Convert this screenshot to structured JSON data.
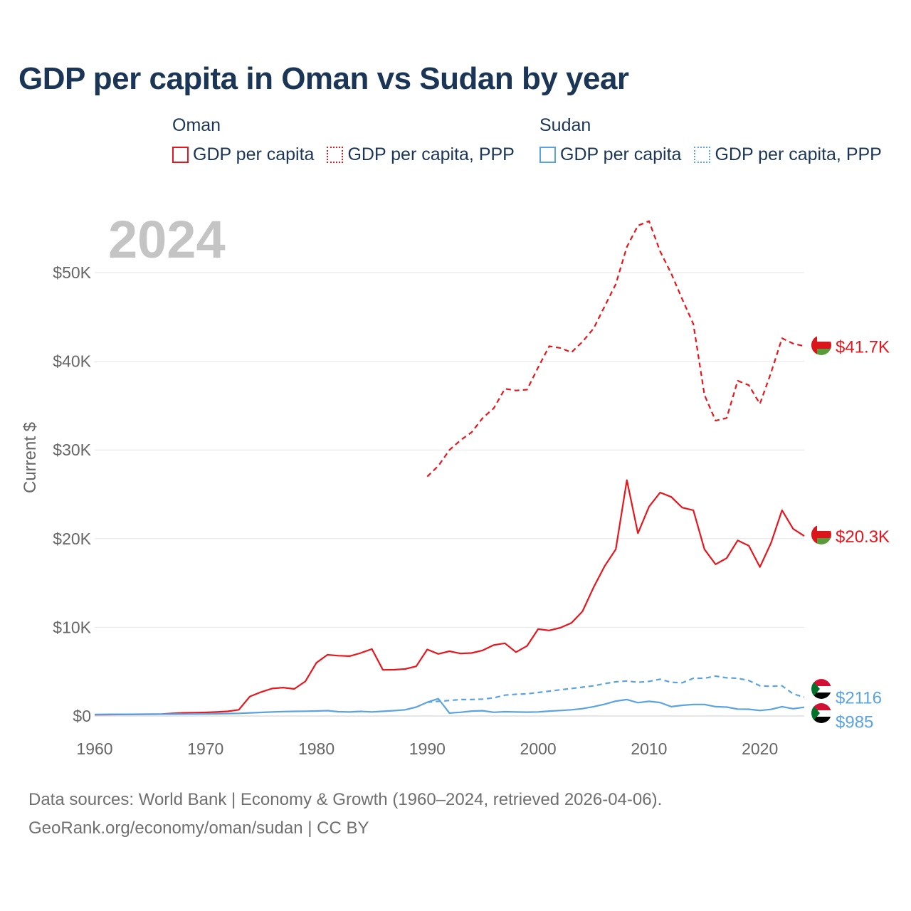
{
  "title": "GDP per capita in Oman vs Sudan by year",
  "legend": {
    "groups": [
      {
        "name": "Oman",
        "color": "#e8161c",
        "items": [
          "GDP per capita",
          "GDP per capita, PPP"
        ]
      },
      {
        "name": "Sudan",
        "color": "#5aa3e3",
        "items": [
          "GDP per capita",
          "GDP per capita, PPP"
        ]
      }
    ]
  },
  "year_watermark": "2024",
  "footer": {
    "line1": "Data sources: World Bank | Economy & Growth (1960–2024, retrieved 2026-04-06).",
    "line2": "GeoRank.org/economy/oman/sudan | CC BY"
  },
  "colors": {
    "oman": "#e8161c",
    "sudan": "#5aa3e3",
    "grid": "#e6e6e6",
    "axis_text": "#666666",
    "watermark": "#c4c4c4"
  },
  "chart_data": {
    "type": "line",
    "title": "GDP per capita in Oman vs Sudan by year",
    "xlabel": "",
    "ylabel": "Current $",
    "xlim": [
      1960,
      2024
    ],
    "ylim": [
      0,
      55000
    ],
    "x_ticks": [
      1960,
      1970,
      1980,
      1990,
      2000,
      2010,
      2020
    ],
    "y_ticks": [
      0,
      10000,
      20000,
      30000,
      40000,
      50000
    ],
    "y_tick_labels": [
      "$0",
      "$10K",
      "$20K",
      "$30K",
      "$40K",
      "$50K"
    ],
    "grid": true,
    "series": [
      {
        "name": "Oman GDP per capita",
        "country": "Oman",
        "style": "solid",
        "color": "#e8161c",
        "end_label": "$20.3K",
        "start_year": 1960,
        "values": [
          150,
          160,
          170,
          180,
          190,
          200,
          210,
          300,
          350,
          380,
          400,
          450,
          520,
          700,
          2200,
          2700,
          3100,
          3200,
          3050,
          3900,
          6000,
          6900,
          6800,
          6750,
          7100,
          7550,
          5200,
          5220,
          5300,
          5600,
          7500,
          7000,
          7300,
          7050,
          7100,
          7400,
          8000,
          8200,
          7200,
          7900,
          9800,
          9650,
          9950,
          10500,
          11800,
          14500,
          16900,
          18800,
          26600,
          20600,
          23600,
          25200,
          24700,
          23500,
          23200,
          18800,
          17100,
          17800,
          19800,
          19200,
          16800,
          19500,
          23200,
          21100,
          20300
        ]
      },
      {
        "name": "Oman GDP per capita, PPP",
        "country": "Oman",
        "style": "dashed",
        "color": "#e8161c",
        "end_label": "$41.7K",
        "start_year": 1990,
        "values": [
          27000,
          28200,
          30000,
          31100,
          32000,
          33600,
          34700,
          36900,
          36700,
          36800,
          39300,
          41700,
          41500,
          41000,
          42200,
          43700,
          46200,
          48700,
          52900,
          55300,
          55800,
          52400,
          49900,
          47000,
          44200,
          36200,
          33300,
          33600,
          37800,
          37300,
          35200,
          38700,
          42600,
          42000,
          41700
        ]
      },
      {
        "name": "Sudan GDP per capita",
        "country": "Sudan",
        "style": "solid",
        "color": "#5aa3e3",
        "end_label": "$985",
        "start_year": 1960,
        "values": [
          180,
          185,
          190,
          195,
          200,
          200,
          205,
          210,
          220,
          230,
          240,
          250,
          270,
          300,
          350,
          400,
          450,
          500,
          520,
          540,
          560,
          600,
          480,
          450,
          520,
          460,
          530,
          600,
          700,
          1000,
          1550,
          1950,
          330,
          420,
          550,
          590,
          420,
          480,
          450,
          430,
          460,
          550,
          620,
          700,
          830,
          1050,
          1330,
          1680,
          1850,
          1500,
          1650,
          1520,
          1050,
          1200,
          1300,
          1300,
          1050,
          1000,
          780,
          760,
          620,
          750,
          1050,
          820,
          985
        ]
      },
      {
        "name": "Sudan GDP per capita, PPP",
        "country": "Sudan",
        "style": "dashed",
        "color": "#5aa3e3",
        "end_label": "$2116",
        "start_year": 1990,
        "values": [
          1550,
          1650,
          1750,
          1850,
          1850,
          1900,
          2050,
          2350,
          2450,
          2500,
          2650,
          2800,
          2950,
          3100,
          3250,
          3400,
          3650,
          3850,
          3950,
          3800,
          3900,
          4150,
          3800,
          3750,
          4250,
          4250,
          4500,
          4300,
          4250,
          4000,
          3400,
          3350,
          3400,
          2500,
          2116
        ]
      }
    ]
  }
}
